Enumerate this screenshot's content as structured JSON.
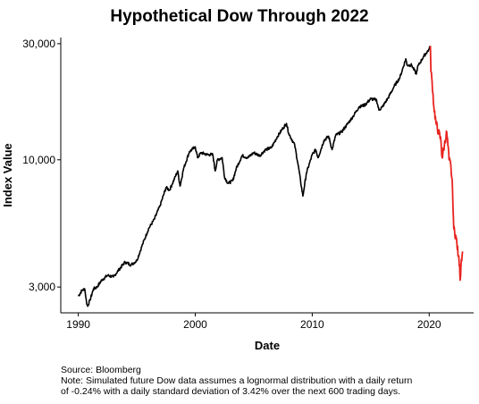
{
  "chart_data": {
    "type": "line",
    "title": "Hypothetical Dow Through 2022",
    "xlabel": "Date",
    "ylabel": "Index Value",
    "y_scale": "log",
    "xlim": [
      1988.5,
      2023.8
    ],
    "ylim": [
      2350,
      31800
    ],
    "x_ticks": [
      1990,
      2000,
      2010,
      2020
    ],
    "y_ticks": [
      {
        "value": 3000,
        "label": "3,000"
      },
      {
        "value": 10000,
        "label": "10,000"
      },
      {
        "value": 30000,
        "label": "30,000"
      }
    ],
    "grid": false,
    "colors": {
      "historical": "#000000",
      "simulated": "#e8231f"
    },
    "series": [
      {
        "x": [
          1990.0,
          1990.3,
          1990.55,
          1990.7,
          1990.8,
          1991.0,
          1991.3,
          1991.6,
          1992.0,
          1992.5,
          1993.0,
          1993.5,
          1994.0,
          1994.5,
          1995.0,
          1995.5,
          1996.0,
          1996.5,
          1997.0,
          1997.5,
          1997.8,
          1998.0,
          1998.5,
          1998.7,
          1999.0,
          1999.5,
          2000.0,
          2000.2,
          2000.5,
          2001.0,
          2001.5,
          2001.7,
          2001.9,
          2002.3,
          2002.5,
          2002.8,
          2003.2,
          2003.5,
          2004.0,
          2004.5,
          2005.0,
          2005.5,
          2006.0,
          2006.5,
          2007.0,
          2007.5,
          2007.8,
          2008.0,
          2008.5,
          2008.8,
          2009.0,
          2009.2,
          2009.5,
          2010.0,
          2010.3,
          2010.5,
          2011.0,
          2011.4,
          2011.7,
          2012.0,
          2012.5,
          2013.0,
          2013.5,
          2014.0,
          2014.5,
          2015.0,
          2015.5,
          2015.7,
          2016.0,
          2016.5,
          2017.0,
          2017.5,
          2018.0,
          2018.1,
          2018.5,
          2018.9,
          2019.0,
          2019.5,
          2020.0,
          2020.1
        ],
        "y": [
          2750,
          2900,
          2950,
          2600,
          2500,
          2650,
          2950,
          3000,
          3200,
          3350,
          3300,
          3550,
          3800,
          3700,
          3850,
          4500,
          5200,
          5700,
          6500,
          7700,
          7500,
          7900,
          9000,
          7800,
          9200,
          10800,
          11300,
          10200,
          10700,
          10500,
          10500,
          9000,
          10000,
          10200,
          8500,
          8000,
          8200,
          9200,
          10400,
          10200,
          10700,
          10400,
          11000,
          11200,
          12400,
          13500,
          14100,
          12800,
          11500,
          9500,
          8200,
          7100,
          8800,
          10500,
          11000,
          10200,
          12000,
          12500,
          11000,
          12600,
          13000,
          14000,
          15100,
          16500,
          16800,
          17800,
          17600,
          16000,
          16500,
          18000,
          20000,
          21800,
          26000,
          24500,
          24500,
          22500,
          24000,
          26500,
          28500,
          29400
        ]
      },
      {
        "x": [
          2020.1,
          2020.15,
          2020.25,
          2020.4,
          2020.6,
          2020.8,
          2021.0,
          2021.1,
          2021.3,
          2021.5,
          2021.7,
          2021.85,
          2022.0,
          2022.1,
          2022.3,
          2022.5,
          2022.6,
          2022.65,
          2022.75,
          2022.85
        ],
        "y": [
          29400,
          23000,
          21000,
          16500,
          14000,
          13000,
          12000,
          10200,
          11500,
          13000,
          10000,
          9500,
          7500,
          5200,
          4800,
          4000,
          3700,
          3200,
          3900,
          4200
        ]
      }
    ]
  },
  "footnote": {
    "source": "Source:  Bloomberg",
    "note_line1": "Note: Simulated future Dow data assumes a lognormal distribution with a daily return",
    "note_line2": "of -0.24% with a daily standard deviation of 3.42% over the next 600 trading days."
  }
}
